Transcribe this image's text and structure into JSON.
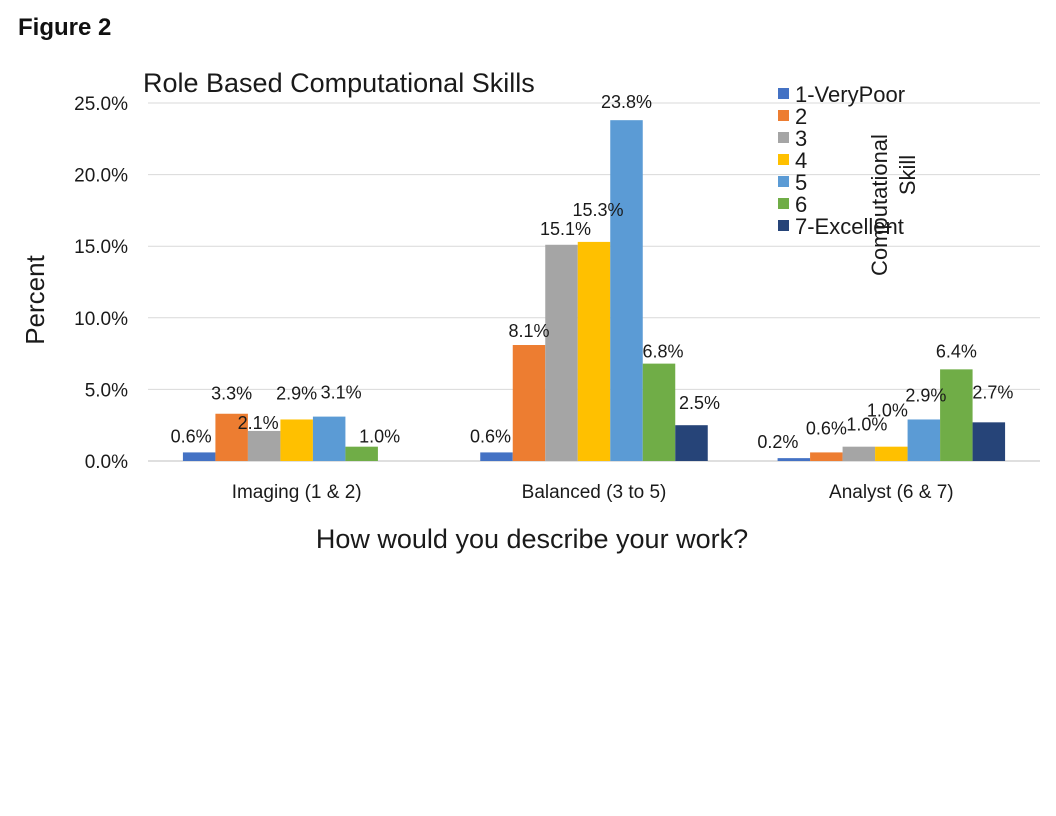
{
  "figure_label": "Figure 2",
  "chart_data": {
    "type": "bar",
    "title": "Role Based Computational Skills",
    "xlabel": "How would you describe your work?",
    "ylabel": "Percent",
    "ylim": [
      0,
      25
    ],
    "yticks": [
      "0.0%",
      "5.0%",
      "10.0%",
      "15.0%",
      "20.0%",
      "25.0%"
    ],
    "grid": true,
    "legend_title": "Computational Skill",
    "legend_position": "top-right",
    "categories": [
      "Imaging (1 & 2)",
      "Balanced (3 to 5)",
      "Analyst (6 & 7)"
    ],
    "series": [
      {
        "name": "1-VeryPoor",
        "color": "#4472C4",
        "values": [
          0.6,
          0.6,
          0.2
        ],
        "labels": [
          "0.6%",
          "0.6%",
          "0.2%"
        ]
      },
      {
        "name": "2",
        "color": "#ED7D31",
        "values": [
          3.3,
          8.1,
          0.6
        ],
        "labels": [
          "3.3%",
          "8.1%",
          "0.6%"
        ]
      },
      {
        "name": "3",
        "color": "#A5A5A5",
        "values": [
          2.1,
          15.1,
          1.0
        ],
        "labels": [
          "2.1%",
          "15.1%",
          "1.0%"
        ]
      },
      {
        "name": "4",
        "color": "#FFC000",
        "values": [
          2.9,
          15.3,
          1.0
        ],
        "labels": [
          "2.9%",
          "15.3%",
          "1.0%"
        ]
      },
      {
        "name": "5",
        "color": "#5B9BD5",
        "values": [
          3.1,
          23.8,
          2.9
        ],
        "labels": [
          "3.1%",
          "23.8%",
          "2.9%"
        ]
      },
      {
        "name": "6",
        "color": "#70AD47",
        "values": [
          1.0,
          6.8,
          6.4
        ],
        "labels": [
          "1.0%",
          "6.8%",
          "6.4%"
        ]
      },
      {
        "name": "7-Excellent",
        "color": "#264478",
        "values": [
          0,
          2.5,
          2.7
        ],
        "labels": [
          "",
          "2.5%",
          "2.7%"
        ]
      }
    ]
  }
}
